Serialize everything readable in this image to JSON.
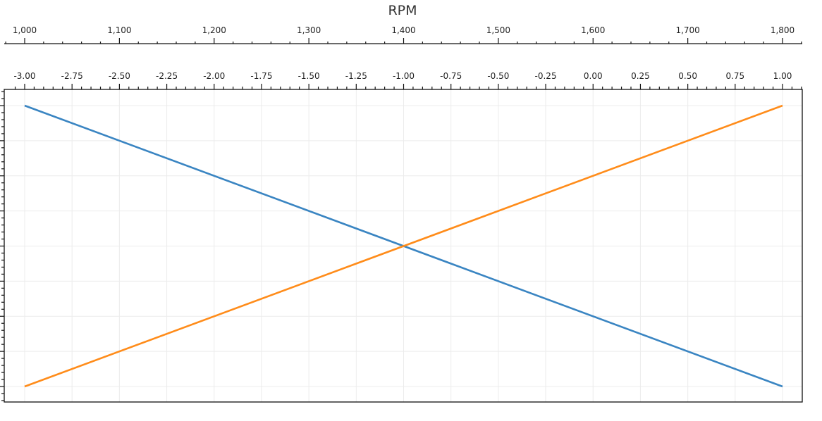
{
  "chart_data": {
    "type": "line",
    "title": "RPM",
    "x_axis_primary": {
      "label": "RPM",
      "range": [
        1000,
        1800
      ],
      "ticks": [
        "1,000",
        "1,100",
        "1,200",
        "1,300",
        "1,400",
        "1,500",
        "1,600",
        "1,700",
        "1,800"
      ]
    },
    "x_axis_secondary": {
      "range": [
        -3.0,
        1.0
      ],
      "ticks": [
        "-3.00",
        "-2.75",
        "-2.50",
        "-2.25",
        "-2.00",
        "-1.75",
        "-1.50",
        "-1.25",
        "-1.00",
        "-0.75",
        "-0.50",
        "-0.25",
        "0.00",
        "0.25",
        "0.50",
        "0.75",
        "1.00"
      ]
    },
    "y_axis": {
      "range": [
        0,
        8
      ],
      "tick_labels_shown": false
    },
    "grid": true,
    "series": [
      {
        "color": "#3a85c2",
        "x": [
          1000,
          1800
        ],
        "y": [
          8,
          0
        ]
      },
      {
        "color": "#ff8c1a",
        "x": [
          1000,
          1800
        ],
        "y": [
          0,
          8
        ]
      }
    ]
  }
}
